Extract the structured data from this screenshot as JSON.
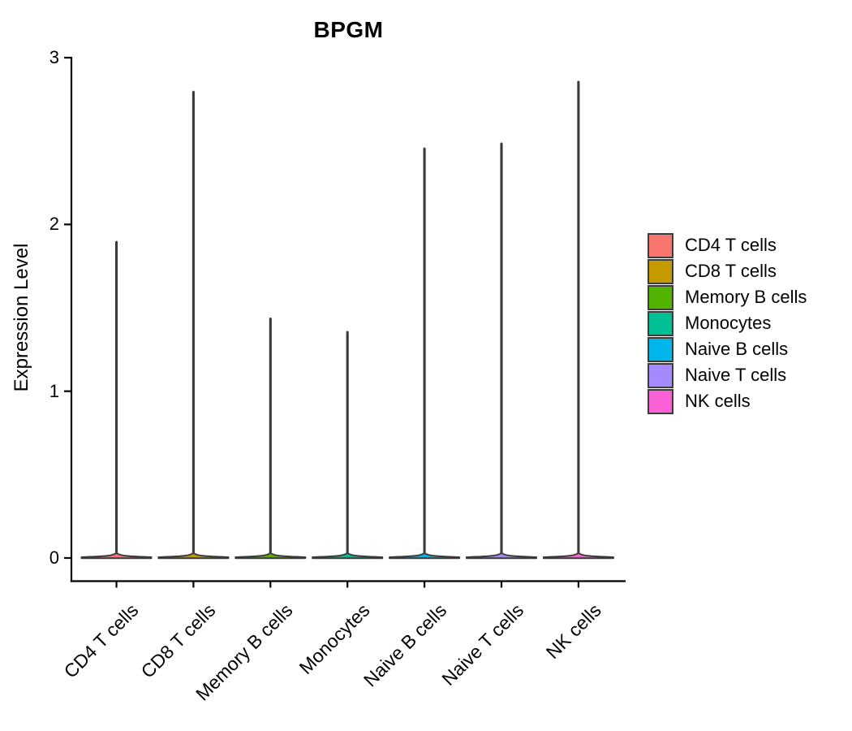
{
  "chart_data": {
    "type": "violin",
    "title": "BPGM",
    "ylabel": "Expression Level",
    "xlabel": "",
    "categories": [
      "CD4 T cells",
      "CD8 T cells",
      "Memory B cells",
      "Monocytes",
      "Naive B cells",
      "Naive T cells",
      "NK cells"
    ],
    "values": [
      1.9,
      2.8,
      1.44,
      1.36,
      2.46,
      2.49,
      2.86
    ],
    "series": [
      {
        "name": "CD4 T cells",
        "color": "#F8766D",
        "max_expression": 1.9,
        "density_bulk_at": 0
      },
      {
        "name": "CD8 T cells",
        "color": "#C49A00",
        "max_expression": 2.8,
        "density_bulk_at": 0
      },
      {
        "name": "Memory B cells",
        "color": "#53B400",
        "max_expression": 1.44,
        "density_bulk_at": 0
      },
      {
        "name": "Monocytes",
        "color": "#00C094",
        "max_expression": 1.36,
        "density_bulk_at": 0
      },
      {
        "name": "Naive B cells",
        "color": "#00B6EB",
        "max_expression": 2.46,
        "density_bulk_at": 0
      },
      {
        "name": "Naive T cells",
        "color": "#A58AFF",
        "max_expression": 2.49,
        "density_bulk_at": 0
      },
      {
        "name": "NK cells",
        "color": "#FB61D7",
        "max_expression": 2.86,
        "density_bulk_at": 0
      }
    ],
    "colors": [
      "#F8766D",
      "#C49A00",
      "#53B400",
      "#00C094",
      "#00B6EB",
      "#A58AFF",
      "#FB61D7"
    ],
    "yticks": [
      "0",
      "1",
      "2",
      "3"
    ],
    "ytick_values": [
      0,
      1,
      2,
      3
    ],
    "ylim": [
      0,
      3
    ],
    "outline_color": "#3A3A3A",
    "axis_color": "#000000",
    "grid": false,
    "legend_position": "right",
    "note": "Each violin is density-concentrated at 0 (wide flat base) with a thin spike up to the maximum expression value."
  }
}
